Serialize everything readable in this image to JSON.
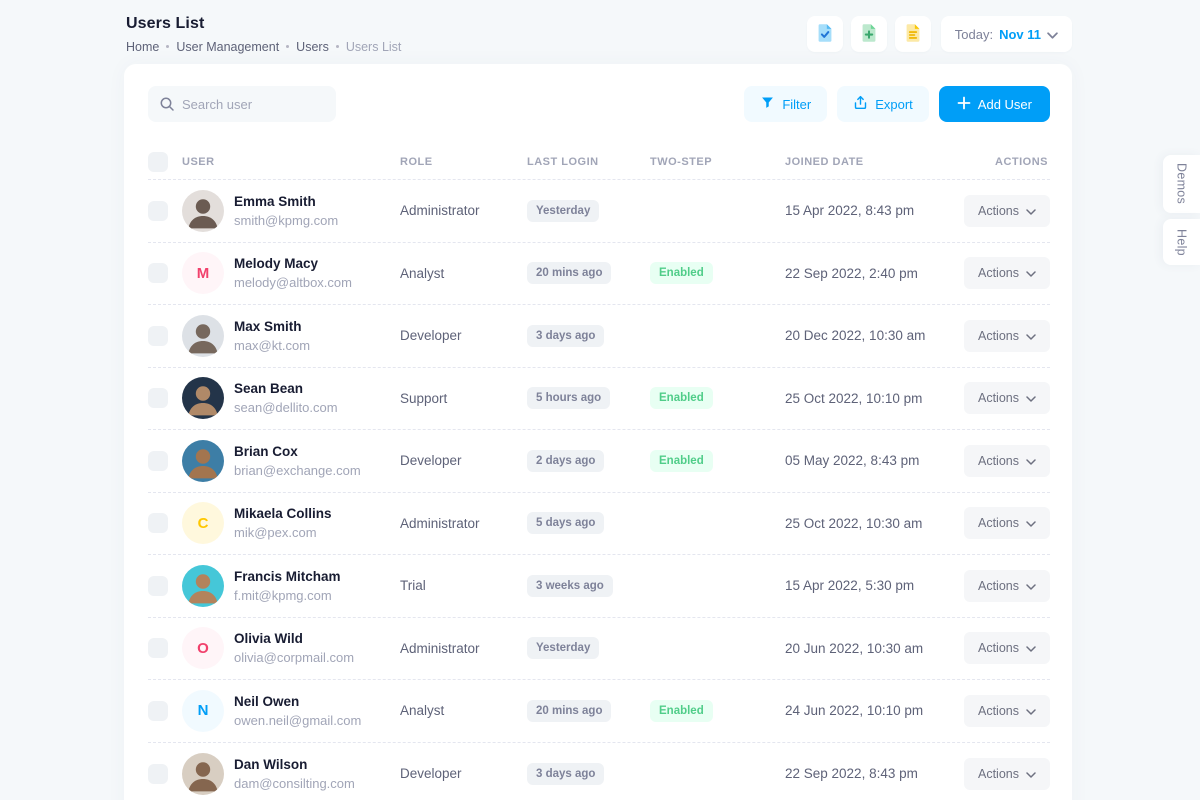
{
  "page": {
    "title": "Users List",
    "breadcrumb": [
      "Home",
      "User Management",
      "Users",
      "Users List"
    ]
  },
  "topbar": {
    "today_label": "Today:",
    "today_value": "Nov 11",
    "icon_buttons": [
      "document-check",
      "document-plus",
      "document-lines"
    ]
  },
  "toolbar": {
    "search_placeholder": "Search user",
    "filter_label": "Filter",
    "export_label": "Export",
    "add_user_label": "Add User"
  },
  "table": {
    "columns": [
      "USER",
      "ROLE",
      "LAST LOGIN",
      "TWO-STEP",
      "JOINED DATE",
      "ACTIONS"
    ],
    "actions_label": "Actions"
  },
  "users": [
    {
      "name": "Emma Smith",
      "email": "smith@kpmg.com",
      "role": "Administrator",
      "last_login": "Yesterday",
      "two_step": "",
      "joined": "15 Apr 2022, 8:43 pm",
      "avatar": {
        "type": "photo",
        "bg": "#e3dedb",
        "fg": "#6b5b52"
      }
    },
    {
      "name": "Melody Macy",
      "email": "melody@altbox.com",
      "role": "Analyst",
      "last_login": "20 mins ago",
      "two_step": "Enabled",
      "joined": "22 Sep 2022, 2:40 pm",
      "avatar": {
        "type": "initial",
        "letter": "M",
        "bg": "#fff5f8",
        "fg": "#f1416c"
      }
    },
    {
      "name": "Max Smith",
      "email": "max@kt.com",
      "role": "Developer",
      "last_login": "3 days ago",
      "two_step": "",
      "joined": "20 Dec 2022, 10:30 am",
      "avatar": {
        "type": "photo",
        "bg": "#dde1e6",
        "fg": "#77685d"
      }
    },
    {
      "name": "Sean Bean",
      "email": "sean@dellito.com",
      "role": "Support",
      "last_login": "5 hours ago",
      "two_step": "Enabled",
      "joined": "25 Oct 2022, 10:10 pm",
      "avatar": {
        "type": "photo",
        "bg": "#233449",
        "fg": "#b08968"
      }
    },
    {
      "name": "Brian Cox",
      "email": "brian@exchange.com",
      "role": "Developer",
      "last_login": "2 days ago",
      "two_step": "Enabled",
      "joined": "05 May 2022, 8:43 pm",
      "avatar": {
        "type": "photo",
        "bg": "#3d7ea6",
        "fg": "#a3754f"
      }
    },
    {
      "name": "Mikaela Collins",
      "email": "mik@pex.com",
      "role": "Administrator",
      "last_login": "5 days ago",
      "two_step": "",
      "joined": "25 Oct 2022, 10:30 am",
      "avatar": {
        "type": "initial",
        "letter": "C",
        "bg": "#fff8dd",
        "fg": "#ffc700"
      }
    },
    {
      "name": "Francis Mitcham",
      "email": "f.mit@kpmg.com",
      "role": "Trial",
      "last_login": "3 weeks ago",
      "two_step": "",
      "joined": "15 Apr 2022, 5:30 pm",
      "avatar": {
        "type": "photo",
        "bg": "#45c7d8",
        "fg": "#b3835c"
      }
    },
    {
      "name": "Olivia Wild",
      "email": "olivia@corpmail.com",
      "role": "Administrator",
      "last_login": "Yesterday",
      "two_step": "",
      "joined": "20 Jun 2022, 10:30 am",
      "avatar": {
        "type": "initial",
        "letter": "O",
        "bg": "#fff5f8",
        "fg": "#f1416c"
      }
    },
    {
      "name": "Neil Owen",
      "email": "owen.neil@gmail.com",
      "role": "Analyst",
      "last_login": "20 mins ago",
      "two_step": "Enabled",
      "joined": "24 Jun 2022, 10:10 pm",
      "avatar": {
        "type": "initial",
        "letter": "N",
        "bg": "#f1faff",
        "fg": "#009ef7"
      }
    },
    {
      "name": "Dan Wilson",
      "email": "dam@consilting.com",
      "role": "Developer",
      "last_login": "3 days ago",
      "two_step": "",
      "joined": "22 Sep 2022, 8:43 pm",
      "avatar": {
        "type": "photo",
        "bg": "#d8cec2",
        "fg": "#85664f"
      }
    }
  ],
  "side_tabs": {
    "demos": "Demos",
    "help": "Help"
  },
  "colors": {
    "page_bg": "#f5f8fa",
    "card_bg": "#ffffff",
    "primary": "#009ef7",
    "primary_light": "#f1faff",
    "success": "#50cd89",
    "success_light": "#e8fff3",
    "text_dark": "#181c32",
    "text_muted": "#a1a5b7",
    "text_gray": "#5e6278",
    "badge_light_bg": "#eff2f5"
  }
}
